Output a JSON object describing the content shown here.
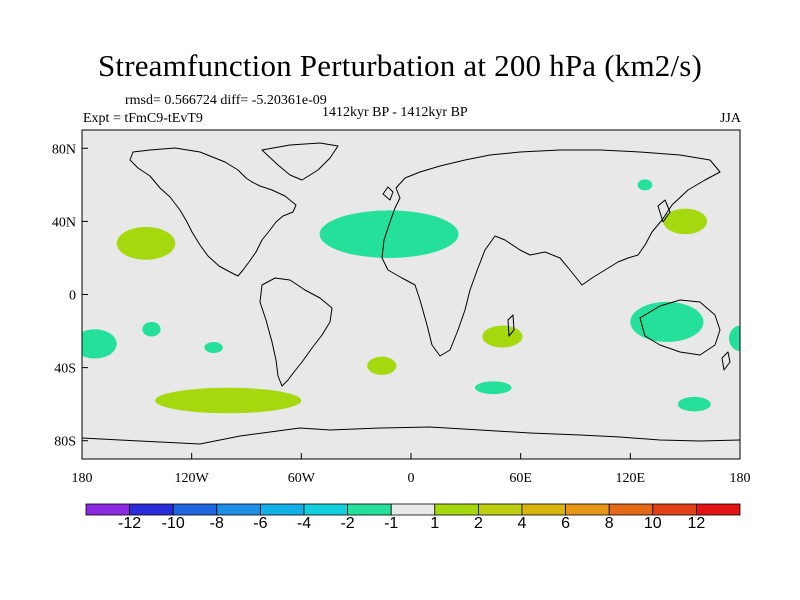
{
  "title": "Streamfunction Perturbation at 200 hPa (km2/s)",
  "stats_line": "rmsd= 0.566724 diff= -5.20361e-09",
  "experiment": "Expt = tFmC9-tEvT9",
  "period": "1412kyr BP - 1412kyr BP",
  "season": "JJA",
  "map": {
    "projection": "cylindrical-equidistant",
    "lon_range": [
      -180,
      180
    ],
    "lat_range": [
      -90,
      90
    ],
    "y_tick_labels": [
      {
        "lat": 80,
        "label": "80N"
      },
      {
        "lat": 40,
        "label": "40N"
      },
      {
        "lat": 0,
        "label": "0"
      },
      {
        "lat": -40,
        "label": "40S"
      },
      {
        "lat": -80,
        "label": "80S"
      }
    ],
    "x_tick_labels": [
      {
        "lon": -180,
        "label": "180"
      },
      {
        "lon": -120,
        "label": "120W"
      },
      {
        "lon": -60,
        "label": "60W"
      },
      {
        "lon": 0,
        "label": "0"
      },
      {
        "lon": 60,
        "label": "60E"
      },
      {
        "lon": 120,
        "label": "120E"
      },
      {
        "lon": 180,
        "label": "180"
      }
    ],
    "background_color": "#e8e8e8",
    "coastline_color": "#000000"
  },
  "contour_regions": [
    {
      "name": "north-pacific-positive",
      "lon": -145,
      "lat": 28,
      "rlon": 16,
      "rlat": 9,
      "level": "1 to 2",
      "color": "#a5d90e"
    },
    {
      "name": "north-atlantic-negative",
      "lon": -12,
      "lat": 33,
      "rlon": 38,
      "rlat": 13,
      "level": "-2 to -1",
      "color": "#24e09a"
    },
    {
      "name": "japan-positive",
      "lon": 150,
      "lat": 40,
      "rlon": 12,
      "rlat": 7,
      "level": "1 to 2",
      "color": "#a5d90e"
    },
    {
      "name": "small-northeast-asia-negative",
      "lon": 128,
      "lat": 60,
      "rlon": 4,
      "rlat": 3,
      "level": "-2 to -1",
      "color": "#24e09a"
    },
    {
      "name": "east-pacific-negative",
      "lon": -173,
      "lat": -27,
      "rlon": 12,
      "rlat": 8,
      "level": "-2 to -1",
      "color": "#24e09a"
    },
    {
      "name": "small-south-pacific-negative",
      "lon": -142,
      "lat": -19,
      "rlon": 5,
      "rlat": 4,
      "level": "-2 to -1",
      "color": "#24e09a"
    },
    {
      "name": "small-central-pacific-negative",
      "lon": -108,
      "lat": -29,
      "rlon": 5,
      "rlat": 3,
      "level": "-2 to -1",
      "color": "#24e09a"
    },
    {
      "name": "south-atlantic-positive",
      "lon": -16,
      "lat": -39,
      "rlon": 8,
      "rlat": 5,
      "level": "1 to 2",
      "color": "#a5d90e"
    },
    {
      "name": "madagascar-positive",
      "lon": 50,
      "lat": -23,
      "rlon": 11,
      "rlat": 6,
      "level": "1 to 2",
      "color": "#a5d90e"
    },
    {
      "name": "indian-ocean-negative",
      "lon": 45,
      "lat": -51,
      "rlon": 10,
      "rlat": 3.5,
      "level": "-2 to -1",
      "color": "#24e09a"
    },
    {
      "name": "australia-negative",
      "lon": 140,
      "lat": -15,
      "rlon": 20,
      "rlat": 11,
      "level": "-2 to -1",
      "color": "#24e09a"
    },
    {
      "name": "tasman-negative",
      "lon": 155,
      "lat": -60,
      "rlon": 9,
      "rlat": 4,
      "level": "-2 to -1",
      "color": "#24e09a"
    },
    {
      "name": "far-east-pacific-negative",
      "lon": 180,
      "lat": -24,
      "rlon": 6,
      "rlat": 7,
      "level": "-2 to -1",
      "color": "#24e09a"
    },
    {
      "name": "southern-ocean-positive",
      "lon": -100,
      "lat": -58,
      "rlon": 40,
      "rlat": 7,
      "level": "1 to 2",
      "color": "#a5d90e"
    }
  ],
  "colorbar": {
    "colors": [
      "#8a2be2",
      "#2b2bd9",
      "#1e66e0",
      "#1e8fe6",
      "#11b0e6",
      "#11cfdc",
      "#24e09a",
      "#e8e8e8",
      "#a5d90e",
      "#c0cf12",
      "#d9b40a",
      "#e69614",
      "#e56a18",
      "#e34216",
      "#e41414"
    ],
    "labels": [
      "-12",
      "-10",
      "-8",
      "-6",
      "-4",
      "-2",
      "-1",
      "1",
      "2",
      "4",
      "6",
      "8",
      "10",
      "12"
    ]
  }
}
